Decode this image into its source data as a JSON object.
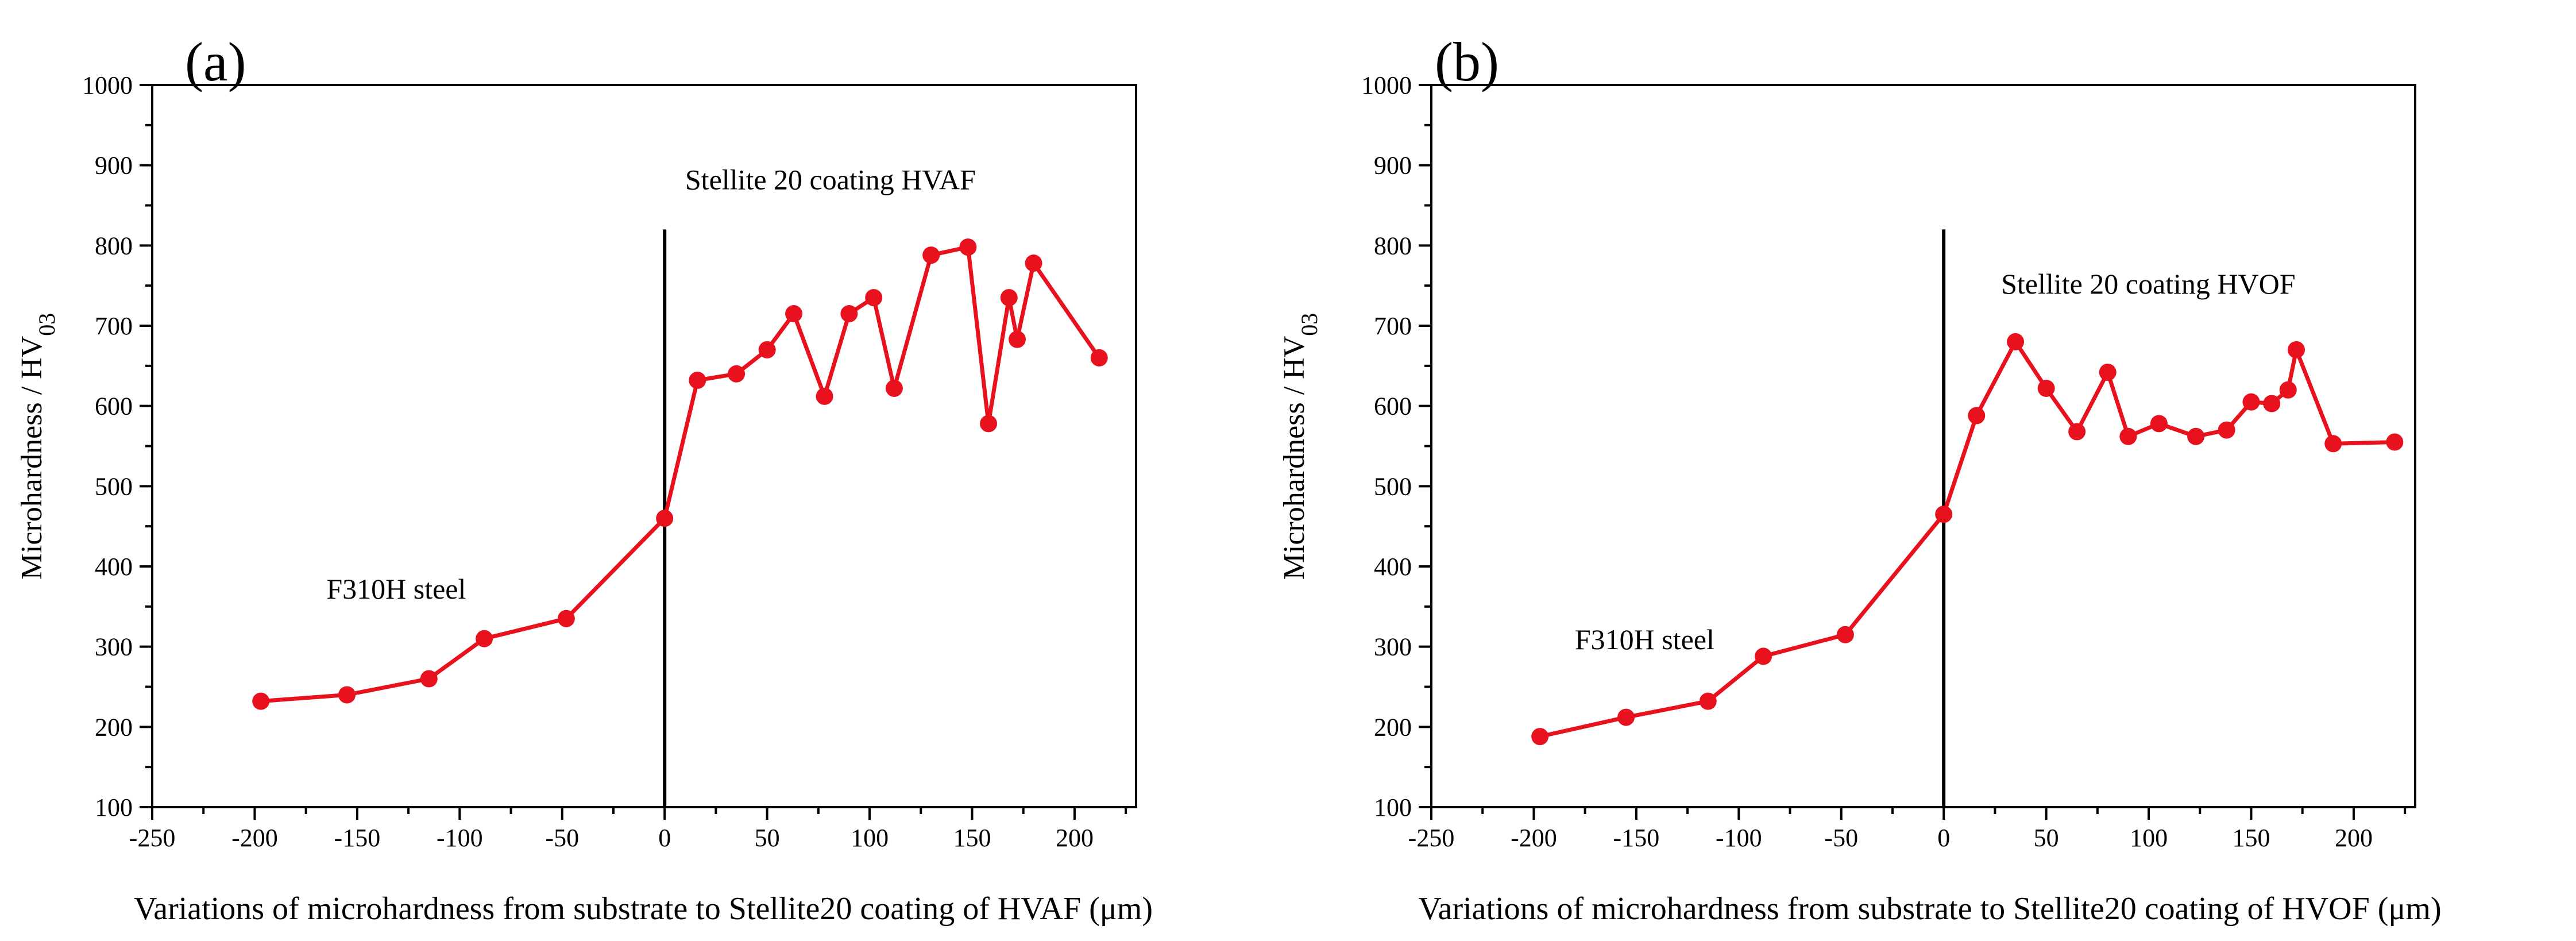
{
  "chart_data": [
    {
      "type": "line",
      "panel_label": "(a)",
      "title": "",
      "xlabel": "Variations of microhardness from substrate to Stellite20 coating of HVAF (μm)",
      "ylabel_main": "Microhardness / HV",
      "ylabel_sub": "03",
      "xlim": [
        -250,
        230
      ],
      "ylim": [
        100,
        1000
      ],
      "xticks": [
        -250,
        -200,
        -150,
        -100,
        -50,
        0,
        50,
        100,
        150,
        200
      ],
      "yticks": [
        100,
        200,
        300,
        400,
        500,
        600,
        700,
        800,
        900,
        1000
      ],
      "grid": false,
      "divider_x": 0,
      "divider_top": 820,
      "annotations": [
        {
          "text": "F310H steel",
          "x": -165,
          "y": 360
        },
        {
          "text": "Stellite 20 coating HVAF",
          "x": 10,
          "y": 870
        }
      ],
      "series": [
        {
          "name": "HVAF",
          "color": "#e8111e",
          "x": [
            -197,
            -155,
            -115,
            -88,
            -48,
            0,
            16,
            35,
            50,
            63,
            78,
            90,
            102,
            112,
            130,
            148,
            158,
            168,
            172,
            180,
            212
          ],
          "y": [
            232,
            240,
            260,
            310,
            335,
            460,
            632,
            640,
            670,
            715,
            612,
            715,
            735,
            622,
            788,
            798,
            578,
            735,
            683,
            778,
            660
          ]
        }
      ]
    },
    {
      "type": "line",
      "panel_label": "(b)",
      "title": "",
      "xlabel": "Variations of microhardness from substrate to Stellite20 coating of HVOF (μm)",
      "ylabel_main": "Microhardness / HV",
      "ylabel_sub": "03",
      "xlim": [
        -250,
        230
      ],
      "ylim": [
        100,
        1000
      ],
      "xticks": [
        -250,
        -200,
        -150,
        -100,
        -50,
        0,
        50,
        100,
        150,
        200
      ],
      "yticks": [
        100,
        200,
        300,
        400,
        500,
        600,
        700,
        800,
        900,
        1000
      ],
      "grid": false,
      "divider_x": 0,
      "divider_top": 820,
      "annotations": [
        {
          "text": "F310H steel",
          "x": -180,
          "y": 297
        },
        {
          "text": "Stellite 20 coating HVOF",
          "x": 28,
          "y": 740
        }
      ],
      "series": [
        {
          "name": "HVOF",
          "color": "#e8111e",
          "x": [
            -197,
            -155,
            -115,
            -88,
            -48,
            0,
            16,
            35,
            50,
            65,
            80,
            90,
            105,
            123,
            138,
            150,
            160,
            168,
            172,
            190,
            220
          ],
          "y": [
            188,
            212,
            232,
            288,
            315,
            465,
            588,
            680,
            622,
            568,
            642,
            562,
            578,
            562,
            570,
            605,
            603,
            620,
            670,
            553,
            555
          ]
        }
      ]
    }
  ]
}
